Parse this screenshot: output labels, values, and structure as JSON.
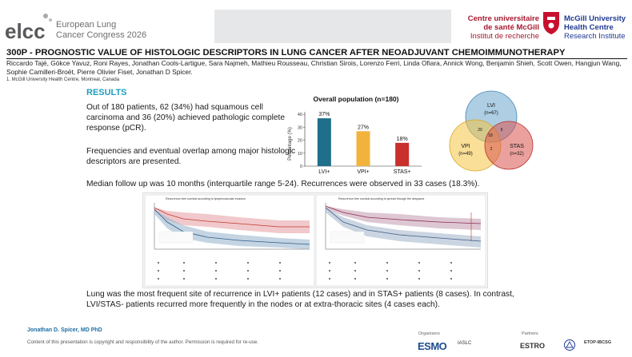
{
  "header": {
    "conference_short": "elcc",
    "conference_name_line1": "European Lung",
    "conference_name_line2": "Cancer Congress 2026",
    "institution_left_line1": "Centre universitaire",
    "institution_left_line2": "de santé McGill",
    "institution_left_line3": "Institut de recherche",
    "institution_right_line1": "McGill University",
    "institution_right_line2": "Health Centre",
    "institution_right_line3": "Research Institute"
  },
  "poster": {
    "title": "300P - PROGNOSTIC VALUE OF HISTOLOGIC DESCRIPTORS IN LUNG CANCER AFTER NEOADJUVANT CHEMOIMMUNOTHERAPY",
    "authors": "Riccardo Tajé, Gökce Yavuz, Roni Rayes, Jonathan Cools-Lartigue, Sara Najmeh, Mathieu Rousseau, Christian Sirois, Lorenzo Ferri, Linda Ofiara, Annick Wong, Benjamin Shieh, Scott Owen, Hangjun Wang, Sophie Camilleri-Broët, Pierre Olivier Fiset, Jonathan D Spicer.",
    "affiliation": "1. McGill University Health Centre, Montreal, Canada"
  },
  "results": {
    "heading": "RESULTS",
    "para1": "Out of 180 patients, 62 (34%) had squamous cell carcinoma and 36 (20%) achieved pathologic complete response (pCR).",
    "para2": "Frequencies and eventual overlap among major histologic descriptors are presented.",
    "followup": "Median follow up was 10 months (interquartile range 5-24). Recurrences were observed in 33 cases (18.3%).",
    "conclusion": "Lung was the most frequent site of recurrence in LVI+ patients (12 cases) and in STAS+ patients (8 cases). In contrast, LVI/STAS- patients recurred more frequently in the nodes or at extra-thoracic sites (4 cases each)."
  },
  "chart_data": [
    {
      "type": "bar",
      "title": "Overall population (n=180)",
      "ylabel": "Percentage (%)",
      "xlabel": "",
      "categories": [
        "LVI+",
        "VPI+",
        "STAS+"
      ],
      "values": [
        37,
        27,
        18
      ],
      "value_labels": [
        "37%",
        "27%",
        "18%"
      ],
      "yticks": [
        0,
        10,
        20,
        30,
        40
      ],
      "ylim": [
        0,
        42
      ],
      "colors": [
        "#1f6f8b",
        "#f2b33d",
        "#c9302c"
      ]
    },
    {
      "type": "venn",
      "sets": [
        {
          "name": "LVI",
          "count_label": "(n=67)",
          "color": "#6ca6cd"
        },
        {
          "name": "VPI",
          "count_label": "(n=49)",
          "color": "#f4c542"
        },
        {
          "name": "STAS",
          "count_label": "(n=32)",
          "color": "#d9534f"
        }
      ],
      "intersections": {
        "LVI_VPI": "20",
        "LVI_STAS": "9",
        "all_three": "18",
        "VPI_STAS": "2"
      }
    }
  ],
  "km_figure": {
    "left_title": "Recurrence-free survival according to lymphovascular invasion",
    "right_title": "Recurrence-free survival according to spread through the airspaces"
  },
  "footer": {
    "author": "Jonathan D. Spicer, MD PhD",
    "disclaimer": "Content of this presentation is copyright and responsibility of the author. Permission is required for re-use.",
    "organisers_label": "Organisers",
    "partners_label": "Partners",
    "org_logo_1": "ESMO",
    "org_logo_2": "IASLC",
    "partner_logo_1": "ESTRO",
    "partner_logo_2": "ETOP-IBCSG"
  }
}
